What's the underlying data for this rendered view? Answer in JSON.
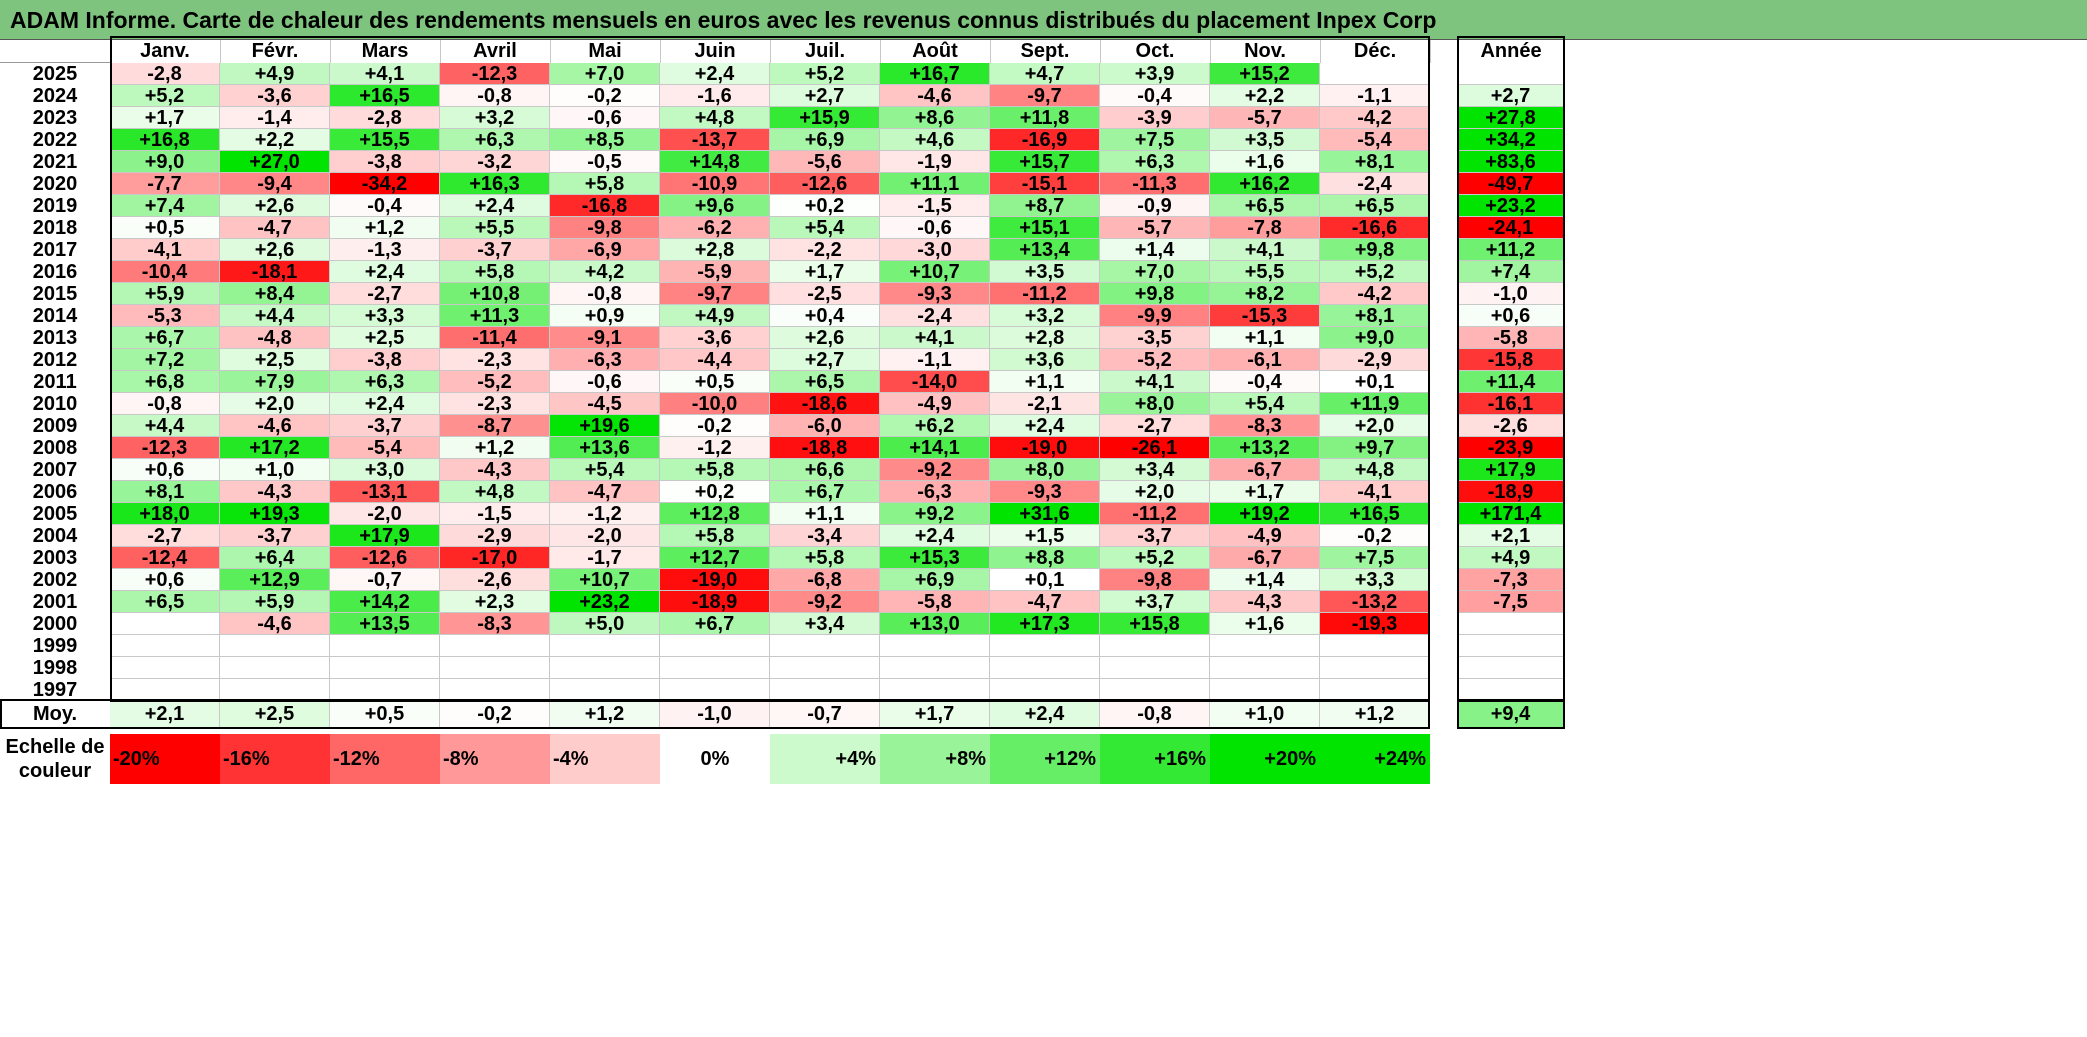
{
  "title": "ADAM Informe. Carte de chaleur des rendements mensuels en euros avec les revenus connus distribués du placement Inpex Corp",
  "months": [
    "Janv.",
    "Févr.",
    "Mars",
    "Avril",
    "Mai",
    "Juin",
    "Juil.",
    "Août",
    "Sept.",
    "Oct.",
    "Nov.",
    "Déc."
  ],
  "year_header": "Année",
  "avg_label": "Moy.",
  "legend_label_line1": "Echelle de",
  "legend_label_line2": "couleur",
  "colors": {
    "title_bar": "#7ec47e",
    "negative_max": "#ff0000",
    "positive_max": "#00e400",
    "neutral": "#ffffff"
  },
  "chart_data": {
    "type": "heatmap",
    "row_labels": [
      "2025",
      "2024",
      "2023",
      "2022",
      "2021",
      "2020",
      "2019",
      "2018",
      "2017",
      "2016",
      "2015",
      "2014",
      "2013",
      "2012",
      "2011",
      "2010",
      "2009",
      "2008",
      "2007",
      "2006",
      "2005",
      "2004",
      "2003",
      "2002",
      "2001",
      "2000",
      "1999",
      "1998",
      "1997"
    ],
    "col_labels": [
      "Janv.",
      "Févr.",
      "Mars",
      "Avril",
      "Mai",
      "Juin",
      "Juil.",
      "Août",
      "Sept.",
      "Oct.",
      "Nov.",
      "Déc."
    ],
    "values": [
      [
        "-2,8",
        "+4,9",
        "+4,1",
        "-12,3",
        "+7,0",
        "+2,4",
        "+5,2",
        "+16,7",
        "+4,7",
        "+3,9",
        "+15,2",
        ""
      ],
      [
        "+5,2",
        "-3,6",
        "+16,5",
        "-0,8",
        "-0,2",
        "-1,6",
        "+2,7",
        "-4,6",
        "-9,7",
        "-0,4",
        "+2,2",
        "-1,1"
      ],
      [
        "+1,7",
        "-1,4",
        "-2,8",
        "+3,2",
        "-0,6",
        "+4,8",
        "+15,9",
        "+8,6",
        "+11,8",
        "-3,9",
        "-5,7",
        "-4,2"
      ],
      [
        "+16,8",
        "+2,2",
        "+15,5",
        "+6,3",
        "+8,5",
        "-13,7",
        "+6,9",
        "+4,6",
        "-16,9",
        "+7,5",
        "+3,5",
        "-5,4"
      ],
      [
        "+9,0",
        "+27,0",
        "-3,8",
        "-3,2",
        "-0,5",
        "+14,8",
        "-5,6",
        "-1,9",
        "+15,7",
        "+6,3",
        "+1,6",
        "+8,1"
      ],
      [
        "-7,7",
        "-9,4",
        "-34,2",
        "+16,3",
        "+5,8",
        "-10,9",
        "-12,6",
        "+11,1",
        "-15,1",
        "-11,3",
        "+16,2",
        "-2,4"
      ],
      [
        "+7,4",
        "+2,6",
        "-0,4",
        "+2,4",
        "-16,8",
        "+9,6",
        "+0,2",
        "-1,5",
        "+8,7",
        "-0,9",
        "+6,5",
        "+6,5"
      ],
      [
        "+0,5",
        "-4,7",
        "+1,2",
        "+5,5",
        "-9,8",
        "-6,2",
        "+5,4",
        "-0,6",
        "+15,1",
        "-5,7",
        "-7,8",
        "-16,6"
      ],
      [
        "-4,1",
        "+2,6",
        "-1,3",
        "-3,7",
        "-6,9",
        "+2,8",
        "-2,2",
        "-3,0",
        "+13,4",
        "+1,4",
        "+4,1",
        "+9,8"
      ],
      [
        "-10,4",
        "-18,1",
        "+2,4",
        "+5,8",
        "+4,2",
        "-5,9",
        "+1,7",
        "+10,7",
        "+3,5",
        "+7,0",
        "+5,5",
        "+5,2"
      ],
      [
        "+5,9",
        "+8,4",
        "-2,7",
        "+10,8",
        "-0,8",
        "-9,7",
        "-2,5",
        "-9,3",
        "-11,2",
        "+9,8",
        "+8,2",
        "-4,2"
      ],
      [
        "-5,3",
        "+4,4",
        "+3,3",
        "+11,3",
        "+0,9",
        "+4,9",
        "+0,4",
        "-2,4",
        "+3,2",
        "-9,9",
        "-15,3",
        "+8,1"
      ],
      [
        "+6,7",
        "-4,8",
        "+2,5",
        "-11,4",
        "-9,1",
        "-3,6",
        "+2,6",
        "+4,1",
        "+2,8",
        "-3,5",
        "+1,1",
        "+9,0"
      ],
      [
        "+7,2",
        "+2,5",
        "-3,8",
        "-2,3",
        "-6,3",
        "-4,4",
        "+2,7",
        "-1,1",
        "+3,6",
        "-5,2",
        "-6,1",
        "-2,9"
      ],
      [
        "+6,8",
        "+7,9",
        "+6,3",
        "-5,2",
        "-0,6",
        "+0,5",
        "+6,5",
        "-14,0",
        "+1,1",
        "+4,1",
        "-0,4",
        "+0,1"
      ],
      [
        "-0,8",
        "+2,0",
        "+2,4",
        "-2,3",
        "-4,5",
        "-10,0",
        "-18,6",
        "-4,9",
        "-2,1",
        "+8,0",
        "+5,4",
        "+11,9"
      ],
      [
        "+4,4",
        "-4,6",
        "-3,7",
        "-8,7",
        "+19,6",
        "-0,2",
        "-6,0",
        "+6,2",
        "+2,4",
        "-2,7",
        "-8,3",
        "+2,0"
      ],
      [
        "-12,3",
        "+17,2",
        "-5,4",
        "+1,2",
        "+13,6",
        "-1,2",
        "-18,8",
        "+14,1",
        "-19,0",
        "-26,1",
        "+13,2",
        "+9,7"
      ],
      [
        "+0,6",
        "+1,0",
        "+3,0",
        "-4,3",
        "+5,4",
        "+5,8",
        "+6,6",
        "-9,2",
        "+8,0",
        "+3,4",
        "-6,7",
        "+4,8"
      ],
      [
        "+8,1",
        "-4,3",
        "-13,1",
        "+4,8",
        "-4,7",
        "+0,2",
        "+6,7",
        "-6,3",
        "-9,3",
        "+2,0",
        "+1,7",
        "-4,1"
      ],
      [
        "+18,0",
        "+19,3",
        "-2,0",
        "-1,5",
        "-1,2",
        "+12,8",
        "+1,1",
        "+9,2",
        "+31,6",
        "-11,2",
        "+19,2",
        "+16,5"
      ],
      [
        "-2,7",
        "-3,7",
        "+17,9",
        "-2,9",
        "-2,0",
        "+5,8",
        "-3,4",
        "+2,4",
        "+1,5",
        "-3,7",
        "-4,9",
        "-0,2"
      ],
      [
        "-12,4",
        "+6,4",
        "-12,6",
        "-17,0",
        "-1,7",
        "+12,7",
        "+5,8",
        "+15,3",
        "+8,8",
        "+5,2",
        "-6,7",
        "+7,5"
      ],
      [
        "+0,6",
        "+12,9",
        "-0,7",
        "-2,6",
        "+10,7",
        "-19,0",
        "-6,8",
        "+6,9",
        "+0,1",
        "-9,8",
        "+1,4",
        "+3,3"
      ],
      [
        "+6,5",
        "+5,9",
        "+14,2",
        "+2,3",
        "+23,2",
        "-18,9",
        "-9,2",
        "-5,8",
        "-4,7",
        "+3,7",
        "-4,3",
        "-13,2"
      ],
      [
        "",
        "-4,6",
        "+13,5",
        "-8,3",
        "+5,0",
        "+6,7",
        "+3,4",
        "+13,0",
        "+17,3",
        "+15,8",
        "+1,6",
        "-19,3"
      ],
      [
        "",
        "",
        "",
        "",
        "",
        "",
        "",
        "",
        "",
        "",
        "",
        ""
      ],
      [
        "",
        "",
        "",
        "",
        "",
        "",
        "",
        "",
        "",
        "",
        "",
        ""
      ],
      [
        "",
        "",
        "",
        "",
        "",
        "",
        "",
        "",
        "",
        "",
        "",
        ""
      ]
    ],
    "annual": [
      "",
      "+2,7",
      "+27,8",
      "+34,2",
      "+83,6",
      "-49,7",
      "+23,2",
      "-24,1",
      "+11,2",
      "+7,4",
      "-1,0",
      "+0,6",
      "-5,8",
      "-15,8",
      "+11,4",
      "-16,1",
      "-2,6",
      "-23,9",
      "+17,9",
      "-18,9",
      "+171,4",
      "+2,1",
      "+4,9",
      "-7,3",
      "-7,5",
      "",
      "",
      "",
      ""
    ],
    "averages": [
      "+2,1",
      "+2,5",
      "+0,5",
      "-0,2",
      "+1,2",
      "-1,0",
      "-0,7",
      "+1,7",
      "+2,4",
      "-0,8",
      "+1,0",
      "+1,2"
    ],
    "average_annual": "+9,4",
    "color_scale": [
      "-20%",
      "-16%",
      "-12%",
      "-8%",
      "-4%",
      "0%",
      "+4%",
      "+8%",
      "+12%",
      "+16%",
      "+20%",
      "+24%"
    ]
  }
}
